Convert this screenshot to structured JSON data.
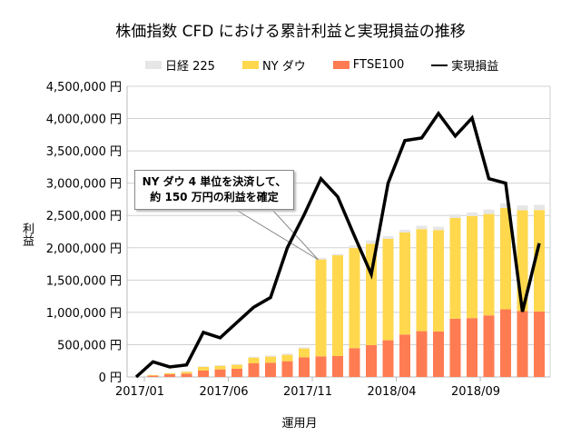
{
  "chart_data": {
    "type": "bar+line",
    "title": "株価指数 CFD における累計利益と実現損益の推移",
    "xlabel": "運用月",
    "ylabel": "利益",
    "ylim": [
      0,
      4500000
    ],
    "y_ticks": [
      "0 円",
      "500,000 円",
      "1,000,000 円",
      "1,500,000 円",
      "2,000,000 円",
      "2,500,000 円",
      "3,000,000 円",
      "3,500,000 円",
      "4,000,000 円",
      "4,500,000 円"
    ],
    "x_tick_labels": [
      "2017/01",
      "2017/06",
      "2017/11",
      "2018/04",
      "2018/09"
    ],
    "categories": [
      "2017/01",
      "2017/02",
      "2017/03",
      "2017/04",
      "2017/05",
      "2017/06",
      "2017/07",
      "2017/08",
      "2017/09",
      "2017/10",
      "2017/11",
      "2017/12",
      "2018/01",
      "2018/02",
      "2018/03",
      "2018/04",
      "2018/05",
      "2018/06",
      "2018/07",
      "2018/08",
      "2018/09",
      "2018/10",
      "2018/11",
      "2018/12",
      "2019/01"
    ],
    "grid": true,
    "legend_position": "top",
    "stacked_series": [
      {
        "name": "FTSE100",
        "color": "#ff7b52",
        "values": [
          0,
          20000,
          42000,
          52000,
          99000,
          117000,
          127000,
          211000,
          221000,
          244000,
          305000,
          319000,
          324000,
          446000,
          493000,
          568000,
          657000,
          709000,
          704000,
          901000,
          911000,
          953000,
          1047000,
          1020000,
          1014000
        ]
      },
      {
        "name": "NY ダウ",
        "color": "#ffd84d",
        "values": [
          0,
          10000,
          15000,
          28000,
          56000,
          56000,
          61000,
          89000,
          94000,
          99000,
          136000,
          1500000,
          1560000,
          1550000,
          1570000,
          1570000,
          1580000,
          1580000,
          1570000,
          1560000,
          1580000,
          1570000,
          1570000,
          1560000,
          1570000
        ]
      },
      {
        "name": "日経 225",
        "color": "#e6e6e6",
        "values": [
          0,
          0,
          5000,
          10000,
          10000,
          10000,
          14000,
          14000,
          19000,
          19000,
          19000,
          25000,
          19000,
          42000,
          52000,
          42000,
          42000,
          52000,
          52000,
          56000,
          56000,
          70000,
          70000,
          75000,
          80000
        ]
      }
    ],
    "line_series": {
      "name": "実現損益",
      "color": "#000000",
      "values": [
        0,
        235000,
        155000,
        187000,
        690000,
        606000,
        845000,
        1080000,
        1230000,
        2000000,
        2510000,
        3070000,
        2790000,
        2180000,
        1590000,
        3000000,
        3660000,
        3700000,
        4080000,
        3730000,
        4010000,
        3070000,
        3000000,
        1010000,
        2070000
      ]
    },
    "annotation": [
      "NY ダウ 4 単位を決済して、",
      "約 150 万円の利益を確定"
    ]
  }
}
